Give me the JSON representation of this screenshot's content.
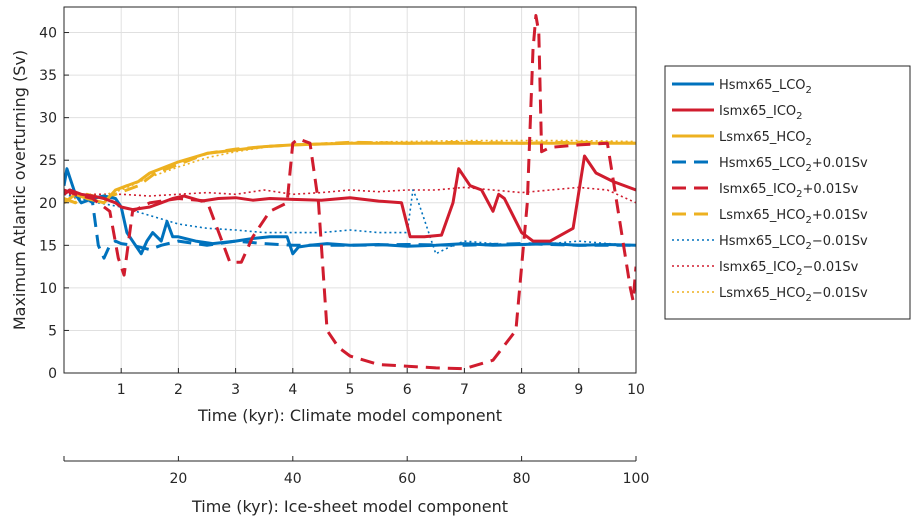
{
  "chart_data": {
    "type": "line",
    "xlabel": "Time (kyr): Climate model component",
    "ylabel": "Maximum Atlantic overturning (Sv)",
    "xlim": [
      0,
      10
    ],
    "ylim": [
      0,
      43
    ],
    "xticks": [
      1,
      2,
      3,
      4,
      5,
      6,
      7,
      8,
      9,
      10
    ],
    "yticks": [
      0,
      5,
      10,
      15,
      20,
      25,
      30,
      35,
      40
    ],
    "grid": true,
    "legend_position": "outside-right",
    "secondary_axis": {
      "xlabel": "Time (kyr): Ice-sheet model component",
      "xlim": [
        0,
        100
      ],
      "xticks": [
        20,
        40,
        60,
        80,
        100
      ]
    },
    "colors": {
      "blue": "#0072BD",
      "red": "#D95319",
      "crimson": "#D01C2E",
      "yellow": "#EDB120"
    },
    "series": [
      {
        "name": "Hsmx65_LCO2",
        "legend_main": "Hsmx65_LCO",
        "legend_sub": "2",
        "legend_tail": "",
        "color": "#0072BD",
        "style": "solid",
        "x": [
          0,
          0.05,
          0.1,
          0.2,
          0.3,
          0.5,
          0.7,
          0.9,
          1.0,
          1.1,
          1.2,
          1.35,
          1.45,
          1.55,
          1.7,
          1.8,
          1.9,
          2.0,
          2.3,
          2.6,
          3.0,
          3.3,
          3.6,
          3.9,
          4.0,
          4.1,
          4.3,
          4.6,
          5.0,
          5.5,
          6.0,
          6.5,
          7.0,
          7.5,
          8.0,
          8.5,
          9.0,
          9.5,
          10.0
        ],
        "y": [
          22,
          24,
          23,
          21,
          20,
          20.5,
          20.8,
          20.5,
          19.5,
          16.5,
          15.5,
          14,
          15.5,
          16.5,
          15.5,
          17.8,
          16,
          16,
          15.5,
          15.2,
          15.5,
          15.8,
          16,
          16,
          14,
          14.8,
          15,
          15.2,
          15,
          15.1,
          14.9,
          15,
          15.2,
          15,
          15.1,
          15.2,
          15,
          15.1,
          15
        ]
      },
      {
        "name": "Ismx65_ICO2",
        "legend_main": "Ismx65_ICO",
        "legend_sub": "2",
        "legend_tail": "",
        "color": "#D01C2E",
        "style": "solid",
        "x": [
          0,
          0.1,
          0.3,
          0.5,
          0.7,
          0.9,
          1.0,
          1.2,
          1.5,
          1.7,
          1.9,
          2.1,
          2.4,
          2.7,
          3.0,
          3.3,
          3.6,
          4.0,
          4.5,
          5.0,
          5.5,
          5.9,
          6.05,
          6.3,
          6.6,
          6.8,
          6.9,
          7.1,
          7.3,
          7.5,
          7.6,
          7.7,
          8.0,
          8.2,
          8.5,
          8.9,
          9.1,
          9.3,
          9.6,
          10.0
        ],
        "y": [
          21,
          21.5,
          21,
          20.8,
          20.5,
          20,
          19.5,
          19.2,
          19.5,
          20,
          20.5,
          20.8,
          20.2,
          20.5,
          20.6,
          20.3,
          20.5,
          20.4,
          20.3,
          20.6,
          20.2,
          20,
          16,
          16,
          16.2,
          20,
          24,
          22,
          21.5,
          19,
          21,
          20.5,
          16.5,
          15.5,
          15.5,
          17,
          25.5,
          23.5,
          22.5,
          21.5
        ]
      },
      {
        "name": "Lsmx65_HCO2",
        "legend_main": "Lsmx65_HCO",
        "legend_sub": "2",
        "legend_tail": "",
        "color": "#EDB120",
        "style": "solid",
        "x": [
          0,
          0.2,
          0.4,
          0.7,
          0.9,
          1.1,
          1.3,
          1.5,
          2.0,
          2.5,
          3.0,
          3.5,
          4.0,
          4.5,
          5.0,
          6.0,
          7.0,
          8.0,
          9.0,
          10.0
        ],
        "y": [
          20,
          21,
          20.5,
          20,
          21.5,
          22,
          22.5,
          23.5,
          24.8,
          25.8,
          26.2,
          26.6,
          26.8,
          26.9,
          27,
          27,
          27,
          27,
          27,
          27
        ]
      },
      {
        "name": "Hsmx65_LCO2+0.01Sv",
        "legend_main": "Hsmx65_LCO",
        "legend_sub": "2",
        "legend_tail": "+0.01Sv",
        "color": "#0072BD",
        "style": "dashed",
        "x": [
          0,
          0.1,
          0.3,
          0.5,
          0.6,
          0.7,
          0.8,
          0.9,
          1.0,
          1.2,
          1.5,
          1.7,
          2.0,
          2.5,
          3.0,
          3.5,
          4.0,
          4.5,
          5.0,
          6.0,
          7.0,
          8.0,
          9.0,
          10.0
        ],
        "y": [
          21,
          21.5,
          21,
          20,
          15,
          13.5,
          15,
          15.5,
          15.2,
          15,
          14.5,
          15,
          15.5,
          15,
          15.5,
          15.2,
          15,
          15,
          15,
          15.1,
          15,
          15.2,
          15,
          15
        ]
      },
      {
        "name": "Ismx65_ICO2+0.01Sv",
        "legend_main": "Ismx65_ICO",
        "legend_sub": "2",
        "legend_tail": "+0.01Sv",
        "color": "#D01C2E",
        "style": "dashed",
        "x": [
          0,
          0.2,
          0.5,
          0.8,
          0.95,
          1.05,
          1.2,
          1.5,
          2.0,
          2.5,
          2.9,
          3.1,
          3.3,
          3.6,
          3.9,
          4.0,
          4.1,
          4.3,
          4.45,
          4.6,
          4.8,
          5.0,
          5.5,
          6.0,
          6.5,
          7.0,
          7.5,
          7.9,
          8.1,
          8.2,
          8.25,
          8.3,
          8.35,
          8.5,
          9.0,
          9.5,
          9.9,
          9.95,
          10.0
        ],
        "y": [
          21.5,
          21,
          20.5,
          19,
          13.5,
          11.5,
          19,
          20,
          20.5,
          20.2,
          13,
          13,
          16,
          19,
          20,
          27,
          27.5,
          27,
          20,
          5,
          3,
          2,
          1,
          0.8,
          0.6,
          0.5,
          1.5,
          5,
          20,
          38,
          42,
          40,
          26,
          26.5,
          26.8,
          27,
          10,
          8.5,
          12.5
        ]
      },
      {
        "name": "Lsmx65_HCO2+0.01Sv",
        "legend_main": "Lsmx65_HCO",
        "legend_sub": "2",
        "legend_tail": "+0.01Sv",
        "color": "#EDB120",
        "style": "dashed",
        "x": [
          0,
          0.2,
          0.4,
          0.7,
          0.9,
          1.1,
          1.3,
          1.6,
          2.0,
          2.5,
          3.0,
          3.5,
          4.0,
          4.5,
          5.0,
          6.0,
          7.0,
          8.0,
          9.0,
          10.0
        ],
        "y": [
          20.5,
          20,
          21,
          20.5,
          21,
          21.5,
          22,
          23.5,
          24.5,
          25.8,
          26.3,
          26.6,
          26.8,
          26.9,
          27.1,
          27,
          27.1,
          27,
          27.1,
          27
        ]
      },
      {
        "name": "Hsmx65_LCO2-0.01Sv",
        "legend_main": "Hsmx65_LCO",
        "legend_sub": "2",
        "legend_tail": "−0.01Sv",
        "color": "#0072BD",
        "style": "dotted",
        "x": [
          0,
          0.3,
          0.6,
          1.0,
          1.5,
          2.0,
          2.5,
          3.0,
          3.5,
          4.0,
          4.5,
          5.0,
          5.5,
          6.0,
          6.1,
          6.2,
          6.3,
          6.5,
          6.8,
          7.0,
          7.5,
          8.0,
          8.5,
          9.0,
          9.5,
          10.0
        ],
        "y": [
          21,
          20.5,
          20,
          19.5,
          18.5,
          17.5,
          17,
          16.8,
          16.5,
          16.5,
          16.5,
          16.8,
          16.5,
          16.5,
          21.5,
          20,
          18,
          14,
          15,
          15.5,
          15.2,
          15,
          15.2,
          15.5,
          15.2,
          15
        ]
      },
      {
        "name": "Ismx65_ICO2-0.01Sv",
        "legend_main": "Ismx65_ICO",
        "legend_sub": "2",
        "legend_tail": "−0.01Sv",
        "color": "#D01C2E",
        "style": "dotted",
        "x": [
          0,
          0.5,
          1.0,
          1.5,
          2.0,
          2.5,
          3.0,
          3.5,
          4.0,
          4.5,
          5.0,
          5.5,
          6.0,
          6.5,
          7.0,
          7.5,
          8.0,
          8.5,
          9.0,
          9.5,
          10.0
        ],
        "y": [
          21,
          21,
          21,
          20.8,
          21,
          21.2,
          21,
          21.5,
          21,
          21.2,
          21.5,
          21.3,
          21.5,
          21.5,
          21.8,
          21.5,
          21.2,
          21.5,
          21.8,
          21.5,
          20
        ]
      },
      {
        "name": "Lsmx65_HCO2-0.01Sv",
        "legend_main": "Lsmx65_HCO",
        "legend_sub": "2",
        "legend_tail": "−0.01Sv",
        "color": "#EDB120",
        "style": "dotted",
        "x": [
          0,
          0.5,
          1.0,
          1.5,
          2.0,
          2.5,
          3.0,
          3.5,
          4.0,
          4.5,
          5.0,
          6.0,
          7.0,
          8.0,
          9.0,
          10.0
        ],
        "y": [
          20.5,
          20.5,
          21.5,
          23,
          24.2,
          25.3,
          26,
          26.5,
          26.8,
          27,
          27.1,
          27.2,
          27.3,
          27.3,
          27.3,
          27.2
        ]
      }
    ]
  }
}
